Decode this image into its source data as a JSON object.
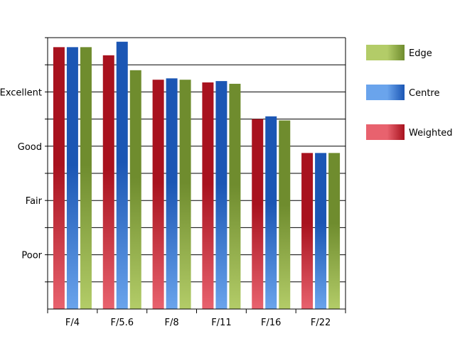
{
  "chart_data": {
    "type": "bar",
    "categories": [
      "F/4",
      "F/5.6",
      "F/8",
      "F/11",
      "F/16",
      "F/22"
    ],
    "y_tick_labels": [
      {
        "label": "Poor",
        "value": 2
      },
      {
        "label": "Fair",
        "value": 4
      },
      {
        "label": "Good",
        "value": 6
      },
      {
        "label": "Excellent",
        "value": 8
      }
    ],
    "ylim": [
      0,
      10
    ],
    "grid": "horizontal",
    "legend_position": "right",
    "series": [
      {
        "name": "Weighted",
        "values": [
          9.65,
          9.35,
          8.45,
          8.35,
          7.0,
          5.75
        ],
        "color_light": "#e8626e",
        "color_dark": "#a8121e"
      },
      {
        "name": "Centre",
        "values": [
          9.65,
          9.85,
          8.5,
          8.4,
          7.1,
          5.75
        ],
        "color_light": "#6aa4ec",
        "color_dark": "#1b56b4"
      },
      {
        "name": "Edge",
        "values": [
          9.65,
          8.8,
          8.45,
          8.3,
          6.95,
          5.75
        ],
        "color_light": "#b3cc68",
        "color_dark": "#6f8c2e"
      }
    ],
    "legend_order": [
      "Edge",
      "Centre",
      "Weighted"
    ]
  }
}
